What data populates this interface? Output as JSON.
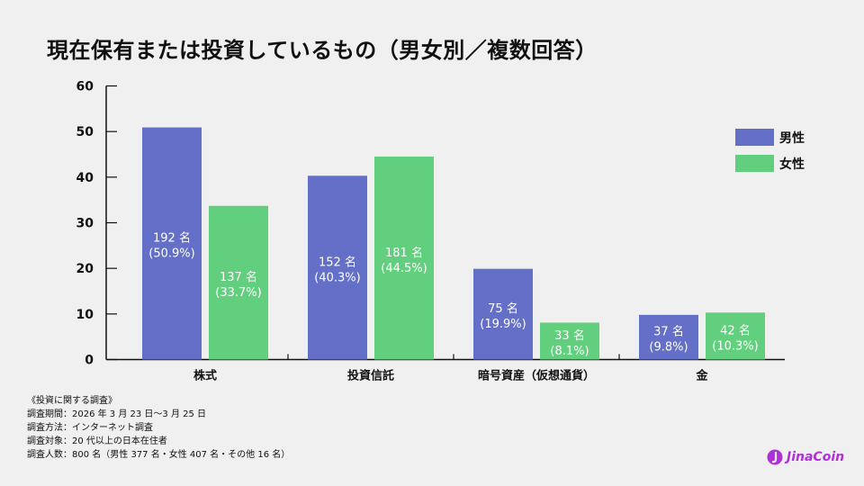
{
  "title": "現在保有または投資しているもの（男女別／複数回答）",
  "chart_data": {
    "type": "bar",
    "title": "現在保有または投資しているもの（男女別／複数回答）",
    "categories": [
      "株式",
      "投資信託",
      "暗号資産（仮想通貨）",
      "金"
    ],
    "ylim": [
      0,
      60
    ],
    "yticks": [
      0,
      10,
      20,
      30,
      40,
      50,
      60
    ],
    "grid": false,
    "legend_position": "top-right",
    "series": [
      {
        "name": "男性",
        "color": "#6470c8",
        "values": [
          50.9,
          40.3,
          19.9,
          9.8
        ],
        "labels": [
          [
            "192 名",
            "(50.9%)"
          ],
          [
            "152 名",
            "(40.3%)"
          ],
          [
            "75 名",
            "(19.9%)"
          ],
          [
            "37 名",
            "(9.8%)"
          ]
        ]
      },
      {
        "name": "女性",
        "color": "#62cf7e",
        "values": [
          33.7,
          44.5,
          8.1,
          10.3
        ],
        "labels": [
          [
            "137 名",
            "(33.7%)"
          ],
          [
            "181 名",
            "(44.5%)"
          ],
          [
            "33 名",
            "(8.1%)"
          ],
          [
            "42 名",
            "(10.3%)"
          ]
        ]
      }
    ]
  },
  "notes": [
    "《投資に関する調査》",
    "調査期間：2026 年 3 月 23 日〜3 月 25 日",
    "調査方法：インターネット調査",
    "調査対象：20 代以上の日本在住者",
    "調査人数：800 名（男性 377 名・女性 407 名・その他 16 名）"
  ],
  "logo": {
    "text": "JinaCoin",
    "color": "#b030d8"
  }
}
